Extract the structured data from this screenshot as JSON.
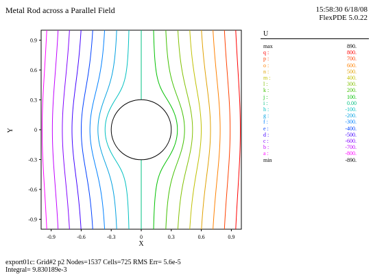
{
  "title": "Metal Rod across a Parallel Field",
  "stamp": {
    "time_date": "15:58:30 6/18/08",
    "version": "FlexPDE 5.0.22"
  },
  "chart_data": {
    "type": "contour",
    "xlabel": "X",
    "ylabel": "Y",
    "xlim": [
      -1,
      1
    ],
    "ylim": [
      -1,
      1
    ],
    "x_ticks": [
      "-0.9",
      "-0.6",
      "-0.3",
      "0",
      "0.3",
      "0.6",
      "0.9"
    ],
    "y_ticks": [
      "0.9",
      "0.6",
      "0.3",
      "0",
      "-0.3",
      "-0.6",
      "-0.9"
    ],
    "rod": {
      "cx": 0,
      "cy": 0,
      "r": 0.3
    },
    "legend_title": "U",
    "levels": [
      {
        "label": "max",
        "value": "890.",
        "color": "#000000"
      },
      {
        "label": "q :",
        "value": "800.",
        "color": "#ff0000"
      },
      {
        "label": "p :",
        "value": "700.",
        "color": "#ff4000"
      },
      {
        "label": "o :",
        "value": "600.",
        "color": "#ff8000"
      },
      {
        "label": "n :",
        "value": "500.",
        "color": "#e0a000"
      },
      {
        "label": "m :",
        "value": "400.",
        "color": "#c0c000"
      },
      {
        "label": "l :",
        "value": "300.",
        "color": "#80c000"
      },
      {
        "label": "k :",
        "value": "200.",
        "color": "#40c000"
      },
      {
        "label": "j :",
        "value": "100.",
        "color": "#00c000"
      },
      {
        "label": "i :",
        "value": "0.00",
        "color": "#00c080"
      },
      {
        "label": "h :",
        "value": "-100.",
        "color": "#00c0c0"
      },
      {
        "label": "g :",
        "value": "-200.",
        "color": "#00a0e0"
      },
      {
        "label": "f :",
        "value": "-300.",
        "color": "#0080ff"
      },
      {
        "label": "e :",
        "value": "-400.",
        "color": "#0040ff"
      },
      {
        "label": "d :",
        "value": "-500.",
        "color": "#4000ff"
      },
      {
        "label": "c :",
        "value": "-600.",
        "color": "#8000ff"
      },
      {
        "label": "b :",
        "value": "-700.",
        "color": "#c000ff"
      },
      {
        "label": "a :",
        "value": "-800.",
        "color": "#ff00ff"
      },
      {
        "label": "min",
        "value": "-890.",
        "color": "#000000"
      }
    ]
  },
  "footer": {
    "line1": "export01c:  Grid#2  p2  Nodes=1537 Cells=725 RMS Err= 5.6e-5",
    "line2": "Integral=  9.830189e-3"
  }
}
